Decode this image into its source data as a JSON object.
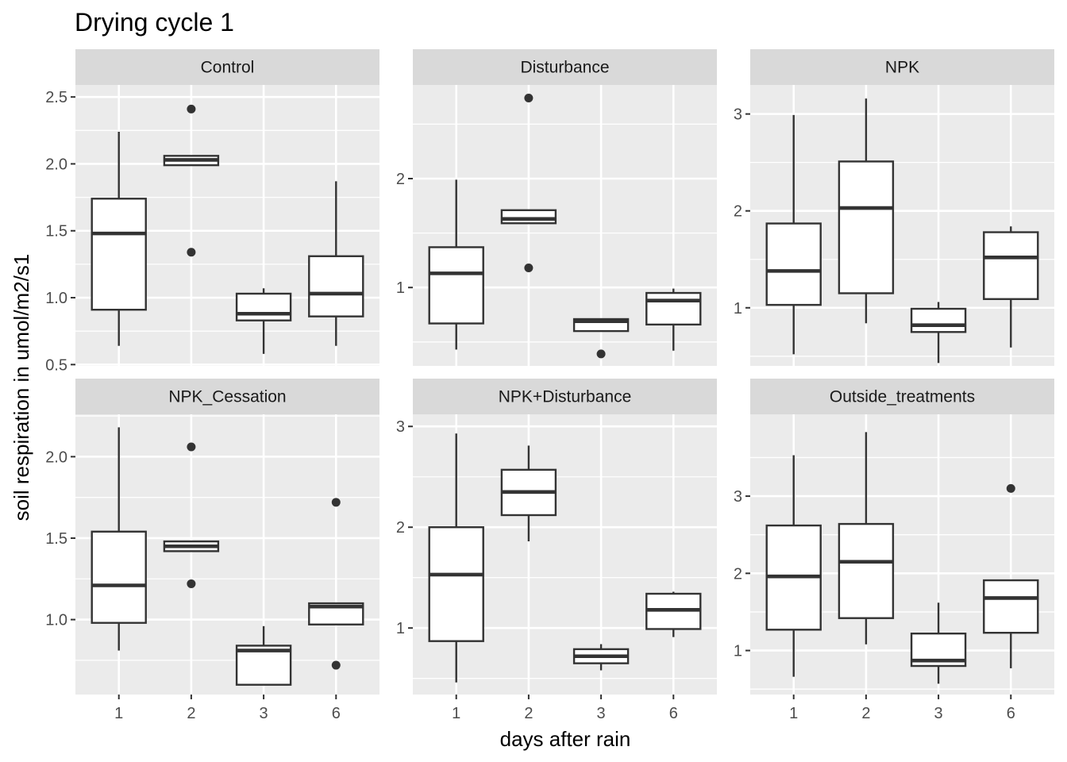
{
  "chart_data": {
    "type": "boxplot",
    "title": "Drying cycle 1",
    "xlabel": "days after rain",
    "ylabel": "soil respiration in umol/m2/s1",
    "categories": [
      "1",
      "2",
      "3",
      "6"
    ],
    "scales": "free_y",
    "grid": true,
    "facets": [
      {
        "name": "Control",
        "ylim": [
          0.49,
          2.59
        ],
        "yticks": [
          0.5,
          1.0,
          1.5,
          2.0,
          2.5
        ],
        "ytick_labels": [
          "0.5",
          "1.0",
          "1.5",
          "2.0",
          "2.5"
        ],
        "boxes": [
          {
            "x": "1",
            "lower_whisker": 0.64,
            "q1": 0.91,
            "median": 1.48,
            "q3": 1.74,
            "upper_whisker": 2.24,
            "outliers": []
          },
          {
            "x": "2",
            "lower_whisker": 1.99,
            "q1": 1.99,
            "median": 2.03,
            "q3": 2.06,
            "upper_whisker": 2.06,
            "outliers": [
              2.41,
              1.34
            ]
          },
          {
            "x": "3",
            "lower_whisker": 0.58,
            "q1": 0.83,
            "median": 0.88,
            "q3": 1.03,
            "upper_whisker": 1.07,
            "outliers": []
          },
          {
            "x": "6",
            "lower_whisker": 0.64,
            "q1": 0.86,
            "median": 1.03,
            "q3": 1.31,
            "upper_whisker": 1.87,
            "outliers": []
          }
        ]
      },
      {
        "name": "Disturbance",
        "ylim": [
          0.28,
          2.86
        ],
        "yticks": [
          1,
          2
        ],
        "ytick_labels": [
          "1",
          "2"
        ],
        "boxes": [
          {
            "x": "1",
            "lower_whisker": 0.43,
            "q1": 0.67,
            "median": 1.13,
            "q3": 1.37,
            "upper_whisker": 1.99,
            "outliers": []
          },
          {
            "x": "2",
            "lower_whisker": 1.59,
            "q1": 1.59,
            "median": 1.63,
            "q3": 1.71,
            "upper_whisker": 1.71,
            "outliers": [
              2.74,
              1.18
            ]
          },
          {
            "x": "3",
            "lower_whisker": 0.6,
            "q1": 0.6,
            "median": 0.69,
            "q3": 0.71,
            "upper_whisker": 0.71,
            "outliers": [
              0.39
            ]
          },
          {
            "x": "6",
            "lower_whisker": 0.42,
            "q1": 0.66,
            "median": 0.88,
            "q3": 0.95,
            "upper_whisker": 0.99,
            "outliers": []
          }
        ]
      },
      {
        "name": "NPK",
        "ylim": [
          0.4,
          3.3
        ],
        "yticks": [
          1,
          2,
          3
        ],
        "ytick_labels": [
          "1",
          "2",
          "3"
        ],
        "boxes": [
          {
            "x": "1",
            "lower_whisker": 0.52,
            "q1": 1.03,
            "median": 1.38,
            "q3": 1.87,
            "upper_whisker": 2.99,
            "outliers": []
          },
          {
            "x": "2",
            "lower_whisker": 0.84,
            "q1": 1.15,
            "median": 2.03,
            "q3": 2.51,
            "upper_whisker": 3.16,
            "outliers": []
          },
          {
            "x": "3",
            "lower_whisker": 0.43,
            "q1": 0.75,
            "median": 0.82,
            "q3": 0.99,
            "upper_whisker": 1.06,
            "outliers": []
          },
          {
            "x": "6",
            "lower_whisker": 0.59,
            "q1": 1.09,
            "median": 1.52,
            "q3": 1.78,
            "upper_whisker": 1.84,
            "outliers": []
          }
        ]
      },
      {
        "name": "NPK_Cessation",
        "ylim": [
          0.54,
          2.26
        ],
        "yticks": [
          1.0,
          1.5,
          2.0
        ],
        "ytick_labels": [
          "1.0",
          "1.5",
          "2.0"
        ],
        "boxes": [
          {
            "x": "1",
            "lower_whisker": 0.81,
            "q1": 0.98,
            "median": 1.21,
            "q3": 1.54,
            "upper_whisker": 2.18,
            "outliers": []
          },
          {
            "x": "2",
            "lower_whisker": 1.42,
            "q1": 1.42,
            "median": 1.45,
            "q3": 1.48,
            "upper_whisker": 1.48,
            "outliers": [
              2.06,
              1.22
            ]
          },
          {
            "x": "3",
            "lower_whisker": 0.6,
            "q1": 0.6,
            "median": 0.81,
            "q3": 0.84,
            "upper_whisker": 0.96,
            "outliers": []
          },
          {
            "x": "6",
            "lower_whisker": 0.97,
            "q1": 0.97,
            "median": 1.08,
            "q3": 1.1,
            "upper_whisker": 1.1,
            "outliers": [
              1.72,
              0.72
            ]
          }
        ]
      },
      {
        "name": "NPK+Disturbance",
        "ylim": [
          0.34,
          3.12
        ],
        "yticks": [
          1,
          2,
          3
        ],
        "ytick_labels": [
          "1",
          "2",
          "3"
        ],
        "boxes": [
          {
            "x": "1",
            "lower_whisker": 0.46,
            "q1": 0.87,
            "median": 1.53,
            "q3": 2.0,
            "upper_whisker": 2.93,
            "outliers": []
          },
          {
            "x": "2",
            "lower_whisker": 1.86,
            "q1": 2.12,
            "median": 2.35,
            "q3": 2.57,
            "upper_whisker": 2.81,
            "outliers": []
          },
          {
            "x": "3",
            "lower_whisker": 0.58,
            "q1": 0.65,
            "median": 0.72,
            "q3": 0.79,
            "upper_whisker": 0.84,
            "outliers": []
          },
          {
            "x": "6",
            "lower_whisker": 0.91,
            "q1": 0.99,
            "median": 1.18,
            "q3": 1.34,
            "upper_whisker": 1.36,
            "outliers": []
          }
        ]
      },
      {
        "name": "Outside_treatments",
        "ylim": [
          0.43,
          4.06
        ],
        "yticks": [
          1,
          2,
          3
        ],
        "ytick_labels": [
          "1",
          "2",
          "3"
        ],
        "boxes": [
          {
            "x": "1",
            "lower_whisker": 0.66,
            "q1": 1.27,
            "median": 1.96,
            "q3": 2.62,
            "upper_whisker": 3.53,
            "outliers": []
          },
          {
            "x": "2",
            "lower_whisker": 1.08,
            "q1": 1.42,
            "median": 2.15,
            "q3": 2.64,
            "upper_whisker": 3.83,
            "outliers": []
          },
          {
            "x": "3",
            "lower_whisker": 0.57,
            "q1": 0.8,
            "median": 0.87,
            "q3": 1.22,
            "upper_whisker": 1.62,
            "outliers": []
          },
          {
            "x": "6",
            "lower_whisker": 0.77,
            "q1": 1.23,
            "median": 1.68,
            "q3": 1.91,
            "upper_whisker": 1.91,
            "outliers": [
              3.1
            ]
          }
        ]
      }
    ]
  }
}
